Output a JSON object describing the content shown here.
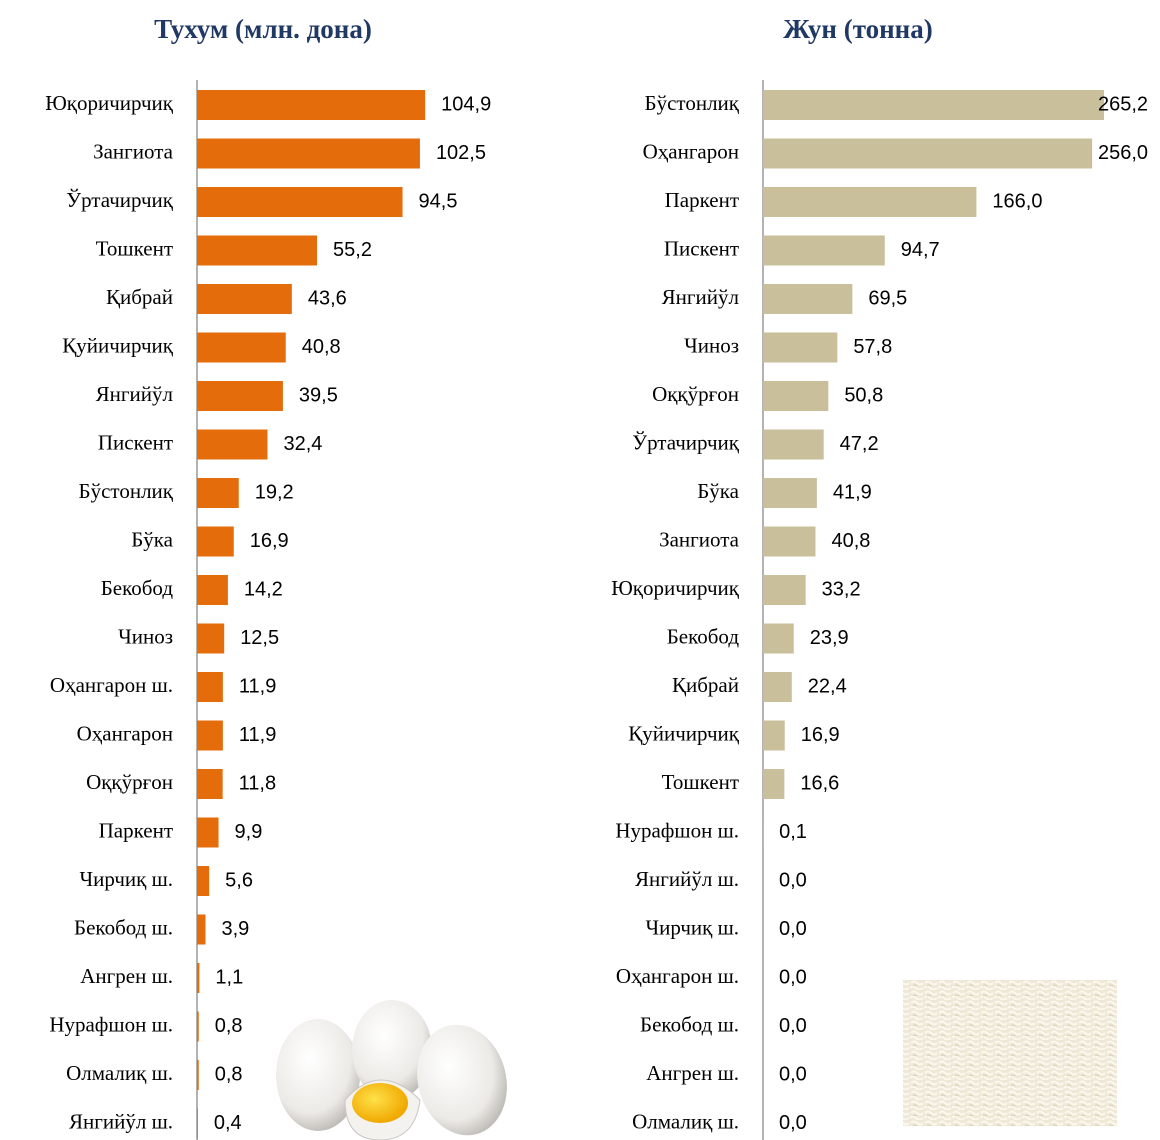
{
  "chart_data": [
    {
      "type": "bar",
      "orientation": "horizontal",
      "title": "Тухум (млн. дона)",
      "color": "#e46c0a",
      "xlim": [
        0,
        120
      ],
      "categories": [
        "Юқоричирчиқ",
        "Зангиота",
        "Ўртачирчиқ",
        "Тошкент",
        "Қибрай",
        "Қуйичирчиқ",
        "Янгийўл",
        "Пискент",
        "Бўстонлиқ",
        "Бўка",
        "Бекобод",
        "Чиноз",
        "Оҳангарон ш.",
        "Оҳангарон",
        "Оққўрғон",
        "Паркент",
        "Чирчиқ ш.",
        "Бекобод ш.",
        "Ангрен ш.",
        "Нурафшон ш.",
        "Олмалиқ ш.",
        "Янгийўл ш."
      ],
      "values": [
        104.9,
        102.5,
        94.5,
        55.2,
        43.6,
        40.8,
        39.5,
        32.4,
        19.2,
        16.9,
        14.2,
        12.5,
        11.9,
        11.9,
        11.8,
        9.9,
        5.6,
        3.9,
        1.1,
        0.8,
        0.8,
        0.4
      ],
      "value_labels": [
        "104,9",
        "102,5",
        "94,5",
        "55,2",
        "43,6",
        "40,8",
        "39,5",
        "32,4",
        "19,2",
        "16,9",
        "14,2",
        "12,5",
        "11,9",
        "11,9",
        "11,8",
        "9,9",
        "5,6",
        "3,9",
        "1,1",
        "0,8",
        "0,8",
        "0,4"
      ]
    },
    {
      "type": "bar",
      "orientation": "horizontal",
      "title": "Жун (тонна)",
      "color": "#c9bf9b",
      "xlim": [
        0,
        280
      ],
      "categories": [
        "Бўстонлиқ",
        "Оҳангарон",
        "Паркент",
        "Пискент",
        "Янгийўл",
        "Чиноз",
        "Оққўрғон",
        "Ўртачирчиқ",
        "Бўка",
        "Зангиота",
        "Юқоричирчиқ",
        "Бекобод",
        "Қибрай",
        "Қуйичирчиқ",
        "Тошкент",
        "Нурафшон ш.",
        "Янгийўл ш.",
        "Чирчиқ ш.",
        "Оҳангарон ш.",
        "Бекобод ш.",
        "Ангрен ш.",
        "Олмалиқ ш."
      ],
      "values": [
        265.2,
        256.0,
        166.0,
        94.7,
        69.5,
        57.8,
        50.8,
        47.2,
        41.9,
        40.8,
        33.2,
        23.9,
        22.4,
        16.9,
        16.6,
        0.1,
        0.0,
        0.0,
        0.0,
        0.0,
        0.0,
        0.0
      ],
      "value_labels": [
        "265,2",
        "256,0",
        "166,0",
        "94,7",
        "69,5",
        "57,8",
        "50,8",
        "47,2",
        "41,9",
        "40,8",
        "33,2",
        "23,9",
        "22,4",
        "16,9",
        "16,6",
        "0,1",
        "0,0",
        "0,0",
        "0,0",
        "0,0",
        "0,0",
        "0,0"
      ]
    }
  ]
}
